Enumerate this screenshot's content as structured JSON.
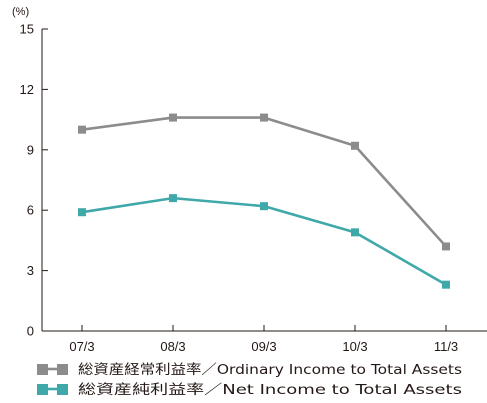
{
  "chart_data": {
    "type": "line",
    "unit_label": "(%)",
    "categories": [
      "07/3",
      "08/3",
      "09/3",
      "10/3",
      "11/3"
    ],
    "ylim": [
      0,
      15
    ],
    "yticks": [
      0,
      3,
      6,
      9,
      12,
      15
    ],
    "ytick_labels": [
      "0",
      "3",
      "6",
      "9",
      "12",
      "15"
    ],
    "grid": false,
    "legend_position": "bottom-left",
    "series": [
      {
        "name": "総資産経常利益率／Ordinary Income to Total Assets",
        "color": "#8c8c8c",
        "values": [
          10.0,
          10.6,
          10.6,
          9.2,
          4.2
        ]
      },
      {
        "name": "総資産純利益率／Net Income to Total Assets",
        "color": "#3fa8a9",
        "values": [
          5.9,
          6.6,
          6.2,
          4.9,
          2.3
        ]
      }
    ]
  }
}
